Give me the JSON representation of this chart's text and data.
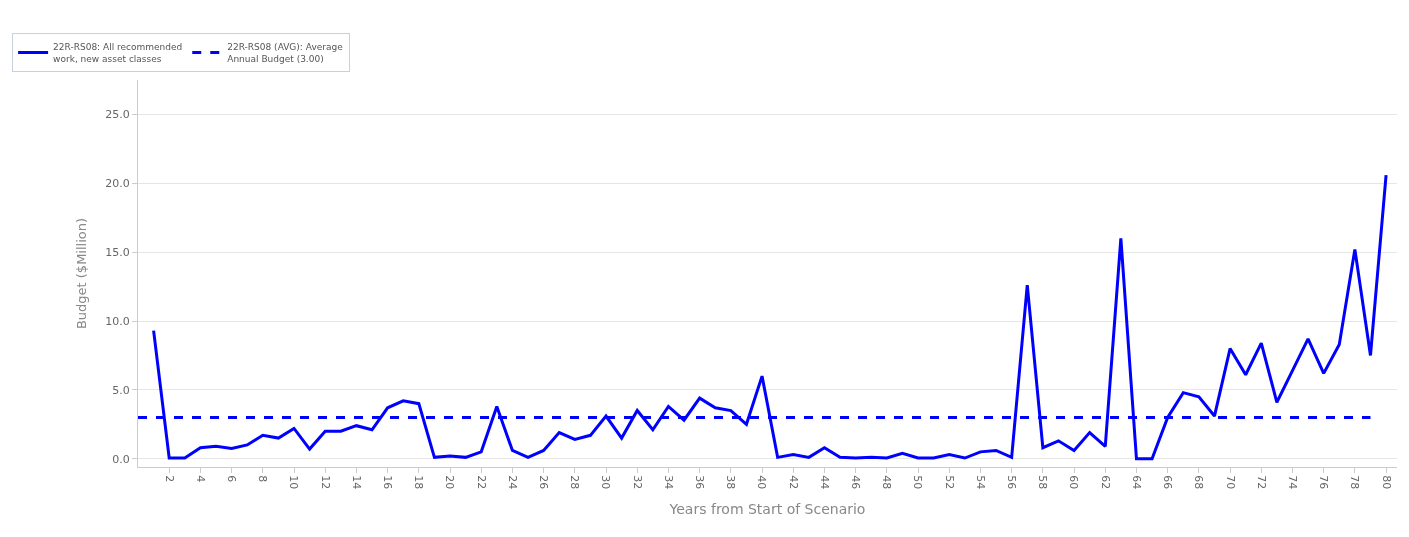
{
  "chart_data": {
    "type": "line",
    "xlabel": "Years from Start of Scenario",
    "ylabel": "Budget ($Million)",
    "xlim": [
      0,
      80.7
    ],
    "xticks": [
      2,
      4,
      6,
      8,
      10,
      12,
      14,
      16,
      18,
      20,
      22,
      24,
      26,
      28,
      30,
      32,
      34,
      36,
      38,
      40,
      42,
      44,
      46,
      48,
      50,
      52,
      54,
      56,
      58,
      60,
      62,
      64,
      66,
      68,
      70,
      72,
      74,
      76,
      78,
      80
    ],
    "ylim": [
      -0.6,
      27.5
    ],
    "yticks": [
      {
        "value": 0,
        "label": "0.0"
      },
      {
        "value": 5,
        "label": "5.0"
      },
      {
        "value": 10,
        "label": "10.0"
      },
      {
        "value": 15,
        "label": "15.0"
      },
      {
        "value": 20,
        "label": "20.0"
      },
      {
        "value": 25,
        "label": "25.0"
      }
    ],
    "grid": "y",
    "legend": "top left",
    "marker": "none",
    "series": [
      {
        "name": "22R-RS08: All recommended work, new asset classes",
        "color": "#0000ff",
        "line_style": "solid",
        "x": [
          1,
          2,
          3,
          4,
          5,
          6,
          7,
          8,
          9,
          10,
          11,
          12,
          13,
          14,
          15,
          16,
          17,
          18,
          19,
          20,
          21,
          22,
          23,
          24,
          25,
          26,
          27,
          28,
          29,
          30,
          31,
          32,
          33,
          34,
          35,
          36,
          37,
          38,
          39,
          40,
          41,
          42,
          43,
          44,
          45,
          46,
          47,
          48,
          49,
          50,
          51,
          52,
          53,
          54,
          55,
          56,
          57,
          58,
          59,
          60,
          61,
          62,
          63,
          64,
          65,
          66,
          67,
          68,
          69,
          70,
          71,
          72,
          73,
          74,
          75,
          76,
          77,
          78,
          79,
          80
        ],
        "values": [
          9.3,
          0.05,
          0.05,
          0.8,
          0.9,
          0.75,
          1.0,
          1.7,
          1.5,
          2.2,
          0.7,
          2.0,
          2.0,
          2.4,
          2.1,
          3.7,
          4.2,
          4.0,
          0.1,
          0.2,
          0.1,
          0.5,
          3.8,
          0.6,
          0.1,
          0.6,
          1.9,
          1.4,
          1.7,
          3.1,
          1.5,
          3.5,
          2.1,
          3.8,
          2.8,
          4.4,
          3.7,
          3.5,
          2.5,
          6.0,
          0.1,
          0.3,
          0.1,
          0.8,
          0.1,
          0.05,
          0.1,
          0.05,
          0.4,
          0.05,
          0.05,
          0.3,
          0.05,
          0.5,
          0.6,
          0.1,
          12.6,
          0.8,
          1.3,
          0.6,
          1.9,
          0.9,
          16.0,
          0.0,
          0.0,
          3.0,
          4.8,
          4.5,
          3.1,
          8.0,
          6.1,
          8.4,
          4.1,
          6.4,
          8.7,
          6.2,
          8.3,
          15.2,
          7.5,
          20.6
        ]
      },
      {
        "name": "22R-RS08 (AVG): Average Annual Budget (3.00)",
        "color": "#0000ff",
        "line_style": "dashed",
        "x": [
          0,
          79
        ],
        "values": [
          3.0,
          3.0
        ]
      }
    ]
  }
}
